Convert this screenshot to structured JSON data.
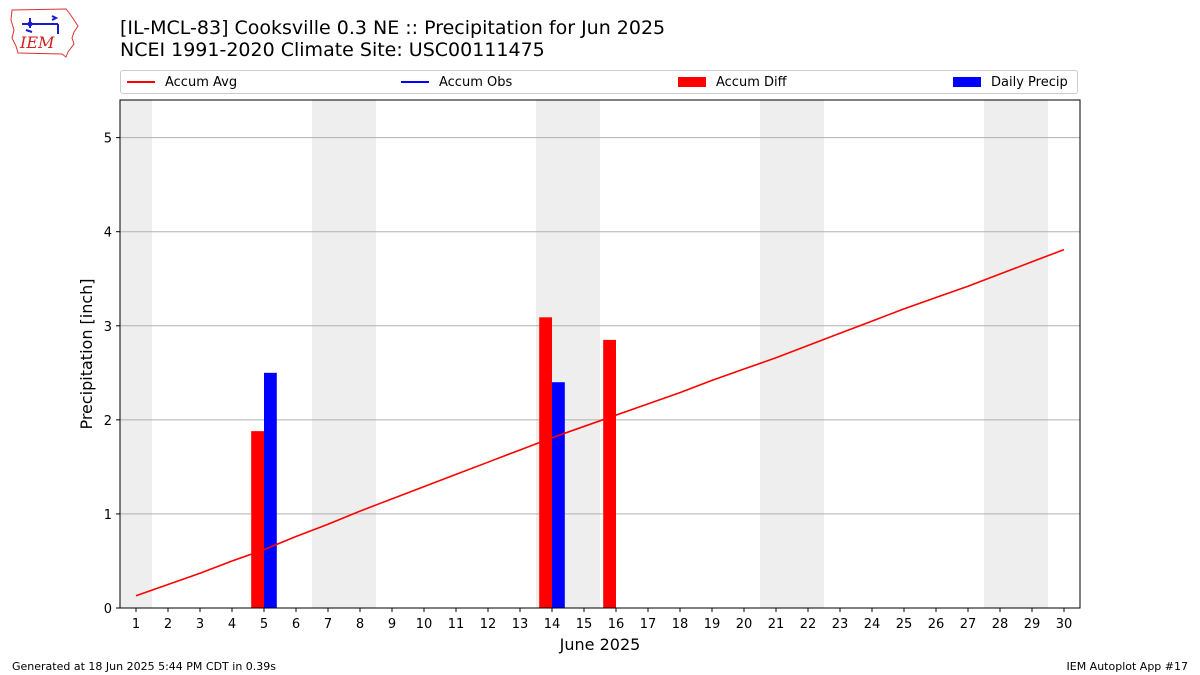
{
  "header": {
    "title_line1": "[IL-MCL-83] Cooksville 0.3 NE :: Precipitation for Jun 2025",
    "title_line2": "NCEI 1991-2020 Climate Site: USC00111475"
  },
  "logo": {
    "text": "IEM"
  },
  "legend": [
    {
      "label": "Accum Avg",
      "kind": "line",
      "color": "#ff0000"
    },
    {
      "label": "Accum Obs",
      "kind": "line",
      "color": "#0000ff"
    },
    {
      "label": "Accum Diff",
      "kind": "patch",
      "color": "#ff0000"
    },
    {
      "label": "Daily Precip",
      "kind": "patch",
      "color": "#0000ff"
    }
  ],
  "footer": {
    "left": "Generated at 18 Jun 2025 5:44 PM CDT in 0.39s",
    "right": "IEM Autoplot App #17"
  },
  "chart_data": {
    "type": "bar",
    "xlabel": "June 2025",
    "ylabel": "Precipitation [inch]",
    "xlim": [
      0.5,
      30.5
    ],
    "ylim": [
      0,
      5.4
    ],
    "yticks": [
      0,
      1,
      2,
      3,
      4,
      5
    ],
    "grid": "y",
    "legend_position": "top",
    "weekend_shading": [
      [
        0.5,
        1.5
      ],
      [
        6.5,
        8.5
      ],
      [
        13.5,
        15.5
      ],
      [
        20.5,
        22.5
      ],
      [
        27.5,
        29.5
      ]
    ],
    "categories": [
      "1",
      "2",
      "3",
      "4",
      "5",
      "6",
      "7",
      "8",
      "9",
      "10",
      "11",
      "12",
      "13",
      "14",
      "15",
      "16",
      "17",
      "18",
      "19",
      "20",
      "21",
      "22",
      "23",
      "24",
      "25",
      "26",
      "27",
      "28",
      "29",
      "30"
    ],
    "series": [
      {
        "name": "Accum Avg",
        "type": "line",
        "color": "#ff0000",
        "x": [
          1,
          2,
          3,
          4,
          5,
          6,
          7,
          8,
          9,
          10,
          11,
          12,
          13,
          14,
          15,
          16,
          17,
          18,
          19,
          20,
          21,
          22,
          23,
          24,
          25,
          26,
          27,
          28,
          29,
          30
        ],
        "values": [
          0.13,
          0.25,
          0.37,
          0.5,
          0.62,
          0.76,
          0.89,
          1.03,
          1.16,
          1.29,
          1.42,
          1.55,
          1.68,
          1.81,
          1.93,
          2.05,
          2.17,
          2.29,
          2.42,
          2.54,
          2.66,
          2.79,
          2.92,
          3.05,
          3.18,
          3.3,
          3.42,
          3.55,
          3.68,
          3.81
        ]
      },
      {
        "name": "Accum Diff",
        "type": "bar",
        "color": "#ff0000",
        "x": [
          5,
          14,
          16
        ],
        "values": [
          1.88,
          3.09,
          2.85
        ]
      },
      {
        "name": "Daily Precip",
        "type": "bar",
        "color": "#0000ff",
        "x": [
          5,
          14
        ],
        "values": [
          2.5,
          2.4
        ]
      }
    ]
  }
}
